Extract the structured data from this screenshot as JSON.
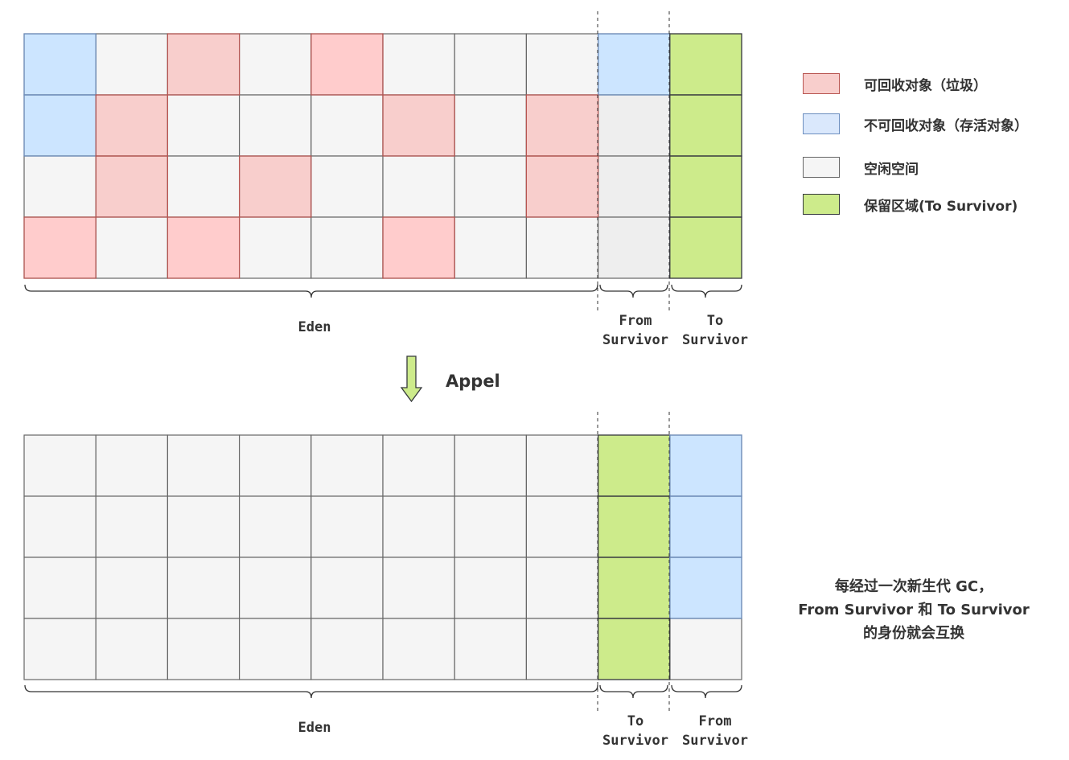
{
  "colors": {
    "garbage": "#f8cecc",
    "garbage_alt": "#ffcccc",
    "survivor": "#cce5ff",
    "survivor_alt": "#dae8fc",
    "free": "#f5f5f5",
    "free_from": "#eeeeee",
    "reserved": "#cdeb8b",
    "grid_line": "#666666",
    "garbage_border": "#b85450",
    "survivor_border": "#6c8ebf",
    "reserved_border": "#36393d"
  },
  "legend": [
    {
      "label": "可回收对象（垃圾）",
      "kind": "garbage"
    },
    {
      "label": "不可回收对象（存活对象）",
      "kind": "survivor_alt"
    },
    {
      "label": "空闲空间",
      "kind": "free"
    },
    {
      "label": "保留区域(To Survivor)",
      "kind": "reserved"
    }
  ],
  "gc_label": "Appel",
  "top_heap": {
    "rows": [
      [
        "survivor",
        "free",
        "garbage",
        "free",
        "garbage_alt",
        "free",
        "free",
        "free",
        "survivor",
        "reserved"
      ],
      [
        "survivor",
        "garbage",
        "free",
        "free",
        "free",
        "garbage",
        "free",
        "garbage",
        "free_from",
        "reserved"
      ],
      [
        "free",
        "garbage",
        "free",
        "garbage",
        "free",
        "free",
        "free",
        "garbage",
        "free_from",
        "reserved"
      ],
      [
        "garbage_alt",
        "free",
        "garbage_alt",
        "free",
        "free",
        "garbage_alt",
        "free",
        "free",
        "free_from",
        "reserved"
      ]
    ],
    "eden_label": "Eden",
    "survivor1_label": [
      "From",
      "Survivor"
    ],
    "survivor2_label": [
      "To",
      "Survivor"
    ]
  },
  "bottom_heap": {
    "rows": [
      [
        "free",
        "free",
        "free",
        "free",
        "free",
        "free",
        "free",
        "free",
        "reserved",
        "survivor"
      ],
      [
        "free",
        "free",
        "free",
        "free",
        "free",
        "free",
        "free",
        "free",
        "reserved",
        "survivor"
      ],
      [
        "free",
        "free",
        "free",
        "free",
        "free",
        "free",
        "free",
        "free",
        "reserved",
        "survivor"
      ],
      [
        "free",
        "free",
        "free",
        "free",
        "free",
        "free",
        "free",
        "free",
        "reserved",
        "free"
      ]
    ],
    "eden_label": "Eden",
    "survivor1_label": [
      "To",
      "Survivor"
    ],
    "survivor2_label": [
      "From",
      "Survivor"
    ]
  },
  "note": [
    "每经过一次新生代 GC，",
    "From Survivor 和 To Survivor",
    "的身份就会互换"
  ]
}
